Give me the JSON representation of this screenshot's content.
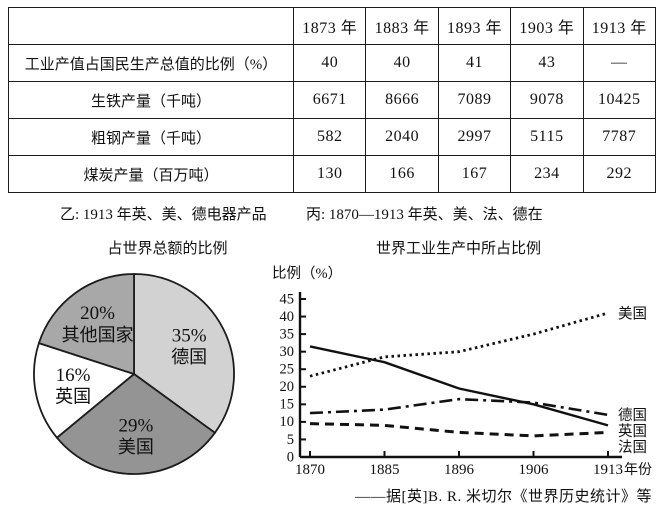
{
  "table": {
    "header": [
      "",
      "1873 年",
      "1883 年",
      "1893 年",
      "1903 年",
      "1913 年"
    ],
    "rows": [
      {
        "label": "工业产值占国民生产总值的比例（%）",
        "values": [
          "40",
          "40",
          "41",
          "43",
          "—"
        ]
      },
      {
        "label": "生铁产量（千吨）",
        "values": [
          "6671",
          "8666",
          "7089",
          "9078",
          "10425"
        ]
      },
      {
        "label": "粗钢产量（千吨）",
        "values": [
          "582",
          "2040",
          "2997",
          "5115",
          "7787"
        ]
      },
      {
        "label": "煤炭产量（百万吨）",
        "values": [
          "130",
          "166",
          "167",
          "234",
          "292"
        ]
      }
    ]
  },
  "captions": {
    "yi_line1": "乙: 1913 年英、美、德电器产品",
    "yi_line2": "占世界总额的比例",
    "bing_line1": "丙: 1870—1913 年英、美、法、德在",
    "bing_line2": "世界工业生产中所占比例"
  },
  "source_note": "——据[英]B. R. 米切尔《世界历史统计》等",
  "chart_data": [
    {
      "type": "pie",
      "title": "1913 年英、美、德电器产品占世界总额的比例",
      "start_angle": "12-o-clock",
      "direction": "clockwise",
      "slices": [
        {
          "label": "德国",
          "value": 35,
          "percent_label": "35%",
          "color": "#d2d2d2"
        },
        {
          "label": "美国",
          "value": 29,
          "percent_label": "29%",
          "color": "#949494"
        },
        {
          "label": "英国",
          "value": 16,
          "percent_label": "16%",
          "color": "#ffffff"
        },
        {
          "label": "其他国家",
          "value": 20,
          "percent_label": "20%",
          "color": "#a8a8a8"
        }
      ],
      "outline_color": "#1c1c1c"
    },
    {
      "type": "line",
      "title": "1870—1913 年英、美、法、德在世界工业生产中所占比例",
      "ylabel": "比例（%）",
      "xlabel": "年份",
      "x": [
        "1870",
        "1885",
        "1896",
        "1906",
        "1913"
      ],
      "ylim": [
        0,
        45
      ],
      "ytick_step": 5,
      "grid": false,
      "legend_position": "right-of-last-point",
      "series": [
        {
          "name": "美国",
          "style": "dotted",
          "values": [
            23,
            28.5,
            30,
            35,
            41
          ]
        },
        {
          "name": "英国",
          "style": "solid",
          "values": [
            31.5,
            27,
            19.5,
            15,
            9
          ]
        },
        {
          "name": "德国",
          "style": "dashdot",
          "values": [
            12.5,
            13.5,
            16.5,
            15.5,
            12
          ]
        },
        {
          "name": "法国",
          "style": "dashed",
          "values": [
            9.5,
            9,
            7,
            6,
            7
          ]
        }
      ],
      "line_color": "#111111"
    }
  ]
}
